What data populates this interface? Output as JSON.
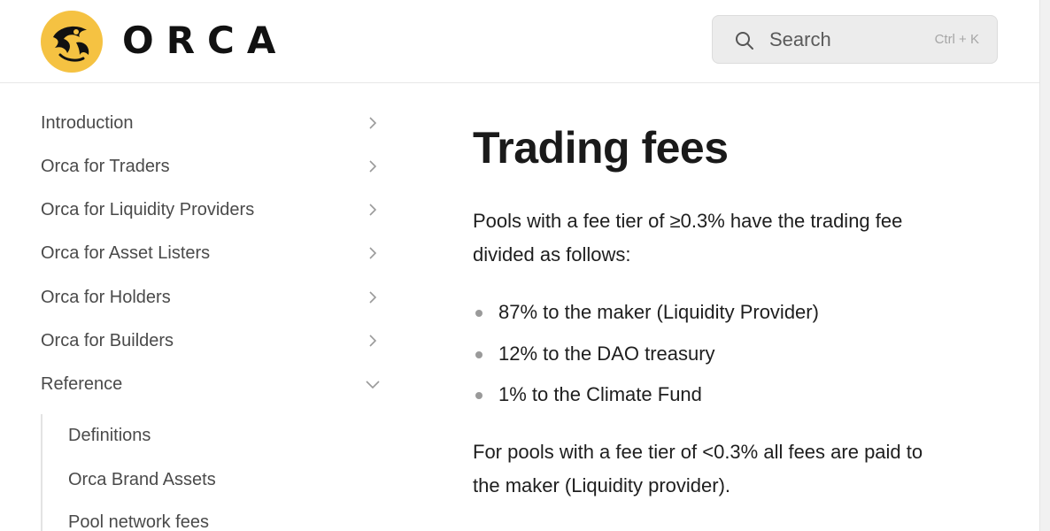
{
  "header": {
    "logo_text": "ORCA",
    "search": {
      "placeholder": "Search",
      "shortcut": "Ctrl + K"
    }
  },
  "sidebar": {
    "items": [
      {
        "label": "Introduction",
        "state": "collapsed"
      },
      {
        "label": "Orca for Traders",
        "state": "collapsed"
      },
      {
        "label": "Orca for Liquidity Providers",
        "state": "collapsed"
      },
      {
        "label": "Orca for Asset Listers",
        "state": "collapsed"
      },
      {
        "label": "Orca for Holders",
        "state": "collapsed"
      },
      {
        "label": "Orca for Builders",
        "state": "collapsed"
      },
      {
        "label": "Reference",
        "state": "expanded"
      }
    ],
    "subitems": [
      {
        "label": "Definitions"
      },
      {
        "label": "Orca Brand Assets"
      },
      {
        "label": "Pool network fees"
      }
    ]
  },
  "main": {
    "title": "Trading fees",
    "intro": "Pools with a fee tier of  ≥0.3% have the trading fee divided as follows:",
    "bullets": [
      "87% to the maker (Liquidity Provider)",
      "12% to the DAO treasury",
      "1% to the Climate Fund"
    ],
    "outro": "For pools with a fee tier of <0.3% all fees are paid to the maker (Liquidity provider)."
  },
  "colors": {
    "logo_yellow": "#F5C242",
    "text": "#1a1a1a",
    "sidebar_text": "#4a4a4a",
    "search_bg": "#ececec"
  },
  "icons": [
    "orca-logo-icon",
    "search-icon",
    "chevron-right-icon",
    "chevron-down-icon"
  ]
}
